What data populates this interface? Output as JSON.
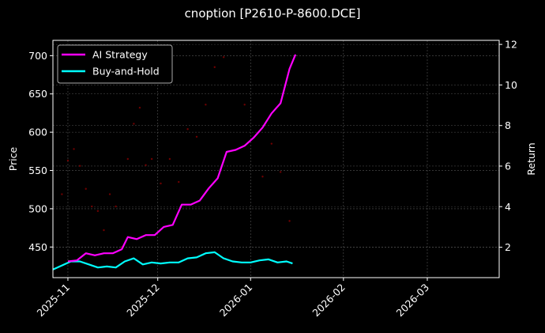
{
  "chart_data": {
    "type": "line",
    "title": "cnoption [P2610-P-8600.DCE]",
    "xlabel": "",
    "ylabel_left": "Price",
    "ylabel_right": "Return",
    "x_tick_labels": [
      "2025-11",
      "2025-12",
      "2026-01",
      "2026-02",
      "2026-03"
    ],
    "y_left_ticks": [
      450,
      500,
      550,
      600,
      650,
      700
    ],
    "y_right_ticks": [
      2,
      4,
      6,
      8,
      10,
      12
    ],
    "ylim_left": [
      410,
      720
    ],
    "ylim_right": [
      0.5,
      12.2
    ],
    "xlim": [
      "2025-10-27",
      "2026-03-25"
    ],
    "grid": true,
    "legend_position": "upper left",
    "legend": [
      "AI Strategy",
      "Buy-and-Hold"
    ],
    "colors": {
      "ai_strategy": "#ff00ff",
      "buy_and_hold": "#00ffff",
      "price_points": "#8b0000",
      "background": "#000000"
    },
    "series": [
      {
        "name": "AI Strategy",
        "axis": "right",
        "dates": [
          "2025-11-01",
          "2025-11-04",
          "2025-11-07",
          "2025-11-10",
          "2025-11-13",
          "2025-11-16",
          "2025-11-19",
          "2025-11-21",
          "2025-11-24",
          "2025-11-27",
          "2025-11-30",
          "2025-12-03",
          "2025-12-06",
          "2025-12-09",
          "2025-12-12",
          "2025-12-15",
          "2025-12-18",
          "2025-12-21",
          "2025-12-24",
          "2025-12-27",
          "2025-12-30",
          "2026-01-02",
          "2026-01-05",
          "2026-01-08",
          "2026-01-11",
          "2026-01-14",
          "2026-01-16"
        ],
        "values": [
          1.3,
          1.35,
          1.7,
          1.6,
          1.7,
          1.7,
          1.9,
          2.5,
          2.4,
          2.6,
          2.6,
          3.0,
          3.1,
          4.1,
          4.1,
          4.3,
          4.9,
          5.4,
          6.7,
          6.8,
          7.0,
          7.4,
          7.9,
          8.6,
          9.1,
          10.8,
          11.5
        ]
      },
      {
        "name": "Buy-and-Hold",
        "axis": "right",
        "dates": [
          "2025-10-27",
          "2025-10-30",
          "2025-11-02",
          "2025-11-05",
          "2025-11-08",
          "2025-11-11",
          "2025-11-14",
          "2025-11-17",
          "2025-11-20",
          "2025-11-23",
          "2025-11-26",
          "2025-11-29",
          "2025-12-02",
          "2025-12-05",
          "2025-12-08",
          "2025-12-11",
          "2025-12-14",
          "2025-12-17",
          "2025-12-20",
          "2025-12-23",
          "2025-12-26",
          "2025-12-29",
          "2026-01-01",
          "2026-01-04",
          "2026-01-07",
          "2026-01-10",
          "2026-01-13",
          "2026-01-15"
        ],
        "values": [
          0.9,
          1.1,
          1.3,
          1.3,
          1.15,
          1.0,
          1.05,
          1.0,
          1.3,
          1.45,
          1.15,
          1.25,
          1.2,
          1.25,
          1.25,
          1.45,
          1.5,
          1.7,
          1.75,
          1.45,
          1.3,
          1.25,
          1.25,
          1.35,
          1.4,
          1.25,
          1.3,
          1.2
        ]
      },
      {
        "name": "Price",
        "axis": "left",
        "style": "scatter (faint dark red)",
        "dates": [
          "2025-10-30",
          "2025-11-01",
          "2025-11-03",
          "2025-11-05",
          "2025-11-07",
          "2025-11-09",
          "2025-11-11",
          "2025-11-13",
          "2025-11-15",
          "2025-11-17",
          "2025-11-19",
          "2025-11-21",
          "2025-11-23",
          "2025-11-25",
          "2025-11-27",
          "2025-11-29",
          "2025-12-02",
          "2025-12-05",
          "2025-12-08",
          "2025-12-11",
          "2025-12-14",
          "2025-12-17",
          "2025-12-20",
          "2025-12-23",
          "2025-12-30",
          "2026-01-05",
          "2026-01-08",
          "2026-01-11",
          "2026-01-14"
        ],
        "values": [
          519,
          563,
          578,
          556,
          526,
          503,
          497,
          472,
          519,
          503,
          450,
          565,
          611,
          632,
          557,
          565,
          533,
          565,
          535,
          604,
          594,
          636,
          685,
          698,
          636,
          542,
          585,
          548,
          484
        ]
      }
    ]
  }
}
